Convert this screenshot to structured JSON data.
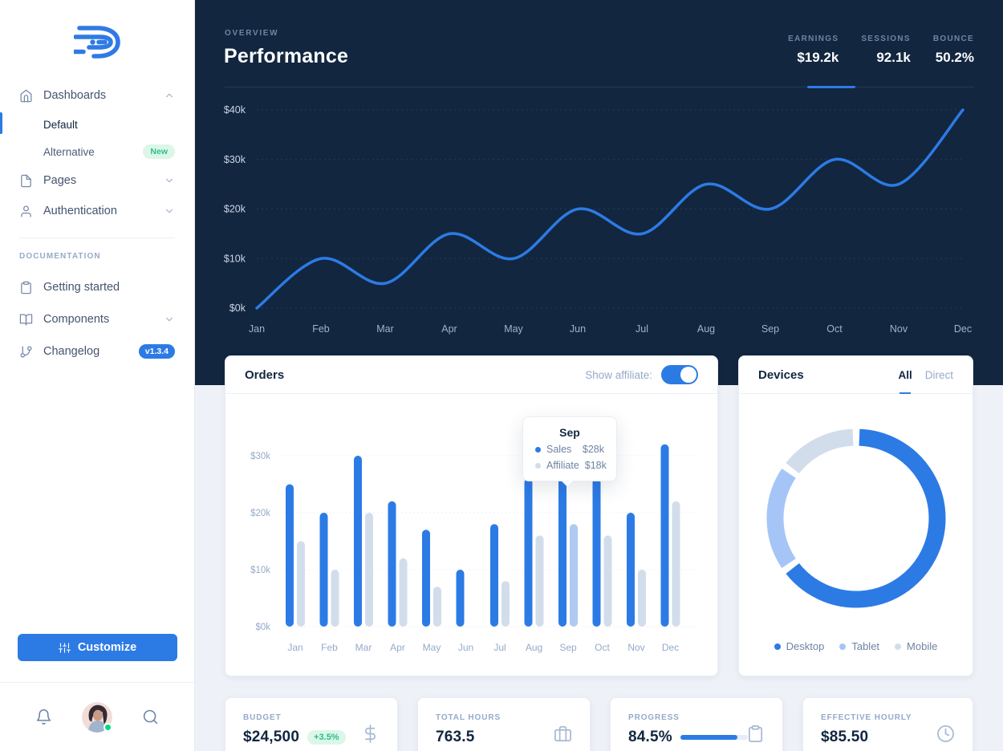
{
  "colors": {
    "accent": "#2c7be5",
    "dark_bg": "#12263f",
    "body_bg": "#eef1f7",
    "muted": "#95aac9",
    "muted_dark": "#6e84a3",
    "light_series": "#d2ddec",
    "green_badge": "#2fbf8f",
    "online_green": "#00d97e"
  },
  "sidebar": {
    "logo_icon": "logo-d-icon",
    "dashboards": {
      "label": "Dashboards"
    },
    "default_item": {
      "label": "Default"
    },
    "alternative_item": {
      "label": "Alternative",
      "badge": "New"
    },
    "pages": {
      "label": "Pages"
    },
    "authentication": {
      "label": "Authentication"
    },
    "docs_heading": "DOCUMENTATION",
    "getting_started": {
      "label": "Getting started"
    },
    "components": {
      "label": "Components"
    },
    "changelog": {
      "label": "Changelog",
      "badge": "v1.3.4"
    },
    "customize_label": "Customize"
  },
  "header": {
    "kicker": "OVERVIEW",
    "title": "Performance",
    "stats": [
      {
        "label": "EARNINGS",
        "value": "$19.2k",
        "active": true
      },
      {
        "label": "SESSIONS",
        "value": "92.1k",
        "active": false
      },
      {
        "label": "BOUNCE",
        "value": "50.2%",
        "active": false
      }
    ]
  },
  "orders": {
    "title": "Orders",
    "toggle_label": "Show affiliate:",
    "toggle_state": "on",
    "tooltip": {
      "title": "Sep",
      "rows": [
        {
          "label": "Sales",
          "value": "$28k",
          "color": "#2c7be5"
        },
        {
          "label": "Affiliate",
          "value": "$18k",
          "color": "#d2ddec"
        }
      ]
    }
  },
  "devices": {
    "title": "Devices",
    "tabs": [
      {
        "label": "All"
      },
      {
        "label": "Direct"
      }
    ],
    "active_tab": "All",
    "legend": [
      {
        "label": "Desktop",
        "color": "#2c7be5"
      },
      {
        "label": "Tablet",
        "color": "#a6c5f7"
      },
      {
        "label": "Mobile",
        "color": "#d2ddec"
      }
    ]
  },
  "kpis": [
    {
      "label": "BUDGET",
      "value": "$24,500",
      "badge": "+3.5%",
      "icon": "dollar-icon"
    },
    {
      "label": "TOTAL HOURS",
      "value": "763.5",
      "icon": "briefcase-icon"
    },
    {
      "label": "PROGRESS",
      "value": "84.5%",
      "icon": "clipboard-icon",
      "progress_pct": 84.5
    },
    {
      "label": "EFFECTIVE HOURLY",
      "value": "$85.50",
      "icon": "clock-icon"
    }
  ],
  "chart_data": [
    {
      "id": "performance-line",
      "type": "line",
      "title": "Performance",
      "x": [
        "Jan",
        "Feb",
        "Mar",
        "Apr",
        "May",
        "Jun",
        "Jul",
        "Aug",
        "Sep",
        "Oct",
        "Nov",
        "Dec"
      ],
      "series": [
        {
          "name": "Earnings",
          "color": "#2c7be5",
          "values": [
            0,
            10,
            5,
            15,
            10,
            20,
            15,
            25,
            20,
            30,
            25,
            40
          ]
        }
      ],
      "yticks": [
        0,
        10,
        20,
        30,
        40
      ],
      "ytick_format": "$%dk",
      "ylim": [
        0,
        42
      ],
      "grid": "dashed-horizontal",
      "legend_position": "none"
    },
    {
      "id": "orders-bars",
      "type": "bar",
      "title": "Orders",
      "categories": [
        "Jan",
        "Feb",
        "Mar",
        "Apr",
        "May",
        "Jun",
        "Jul",
        "Aug",
        "Sep",
        "Oct",
        "Nov",
        "Dec"
      ],
      "series": [
        {
          "name": "Sales",
          "color": "#2c7be5",
          "values": [
            25,
            20,
            30,
            22,
            17,
            10,
            18,
            26,
            28,
            26,
            20,
            32
          ]
        },
        {
          "name": "Affiliate",
          "color": "#d2ddec",
          "values": [
            15,
            10,
            20,
            12,
            7,
            0,
            8,
            16,
            18,
            16,
            10,
            22
          ]
        }
      ],
      "highlight": {
        "series": "Affiliate",
        "index": 8,
        "color": "#afc9f1"
      },
      "yticks": [
        0,
        10,
        20,
        30
      ],
      "ytick_format": "$%dk",
      "ylim": [
        0,
        33
      ],
      "grid": "dotted-horizontal",
      "tooltip_category": "Sep"
    },
    {
      "id": "devices-donut",
      "type": "pie",
      "title": "Devices",
      "labels": [
        "Desktop",
        "Tablet",
        "Mobile"
      ],
      "values": [
        65,
        20,
        15
      ],
      "unit": "percent",
      "colors": [
        "#2c7be5",
        "#a6c5f7",
        "#d2ddec"
      ],
      "legend_position": "bottom"
    }
  ]
}
